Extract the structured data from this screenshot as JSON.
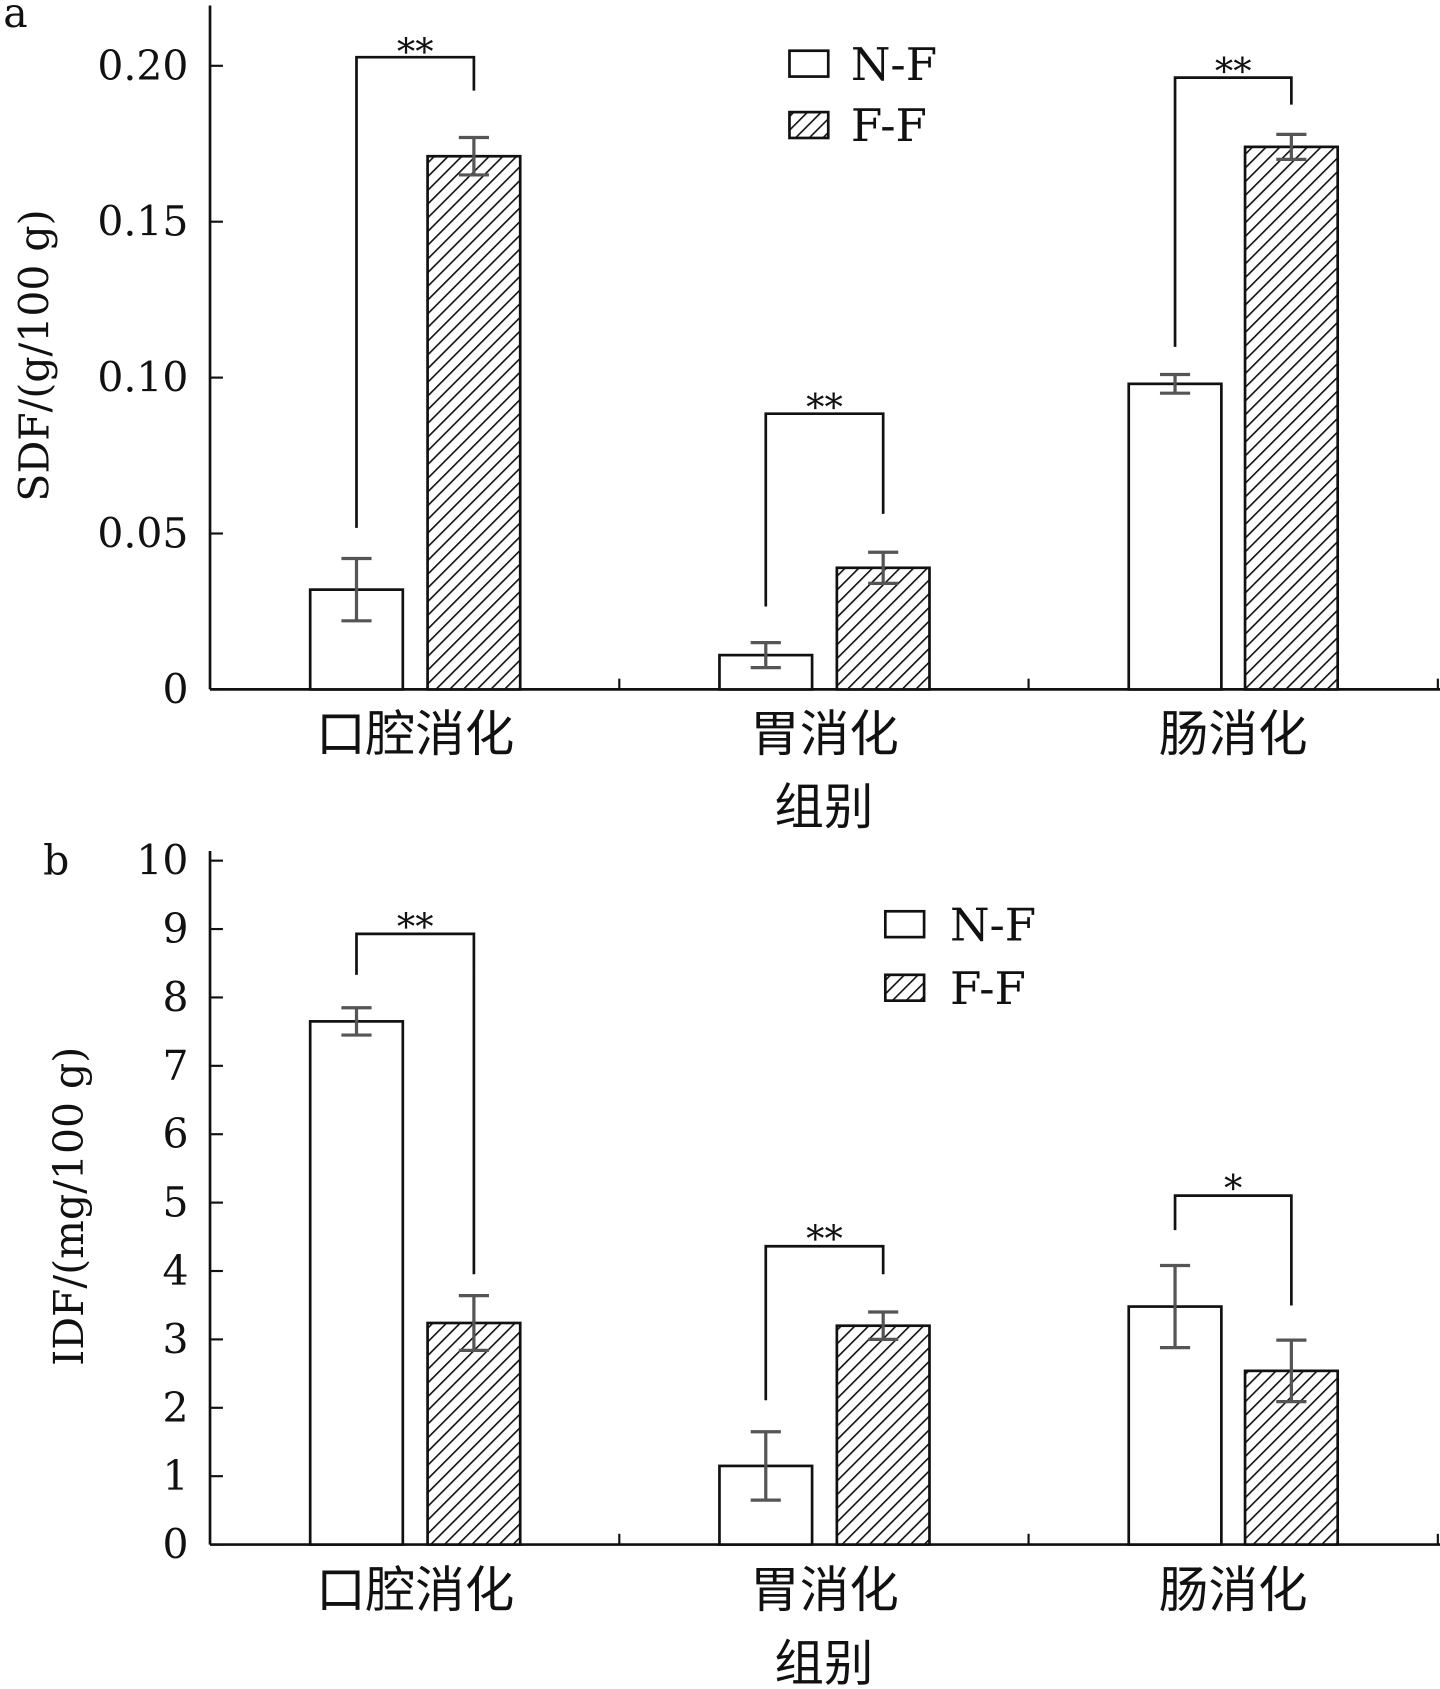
{
  "colors": {
    "axis": "#111111",
    "error_bar": "#555555",
    "bar_fill": "#ffffff",
    "hatch": "#111111"
  },
  "chart_data": [
    {
      "type": "bar",
      "panel_label": "a",
      "title": "",
      "xlabel": "组别",
      "ylabel": "SDF/(g/100 g)",
      "ylim": [
        0,
        0.2
      ],
      "yticks": [
        "0",
        "0.05",
        "0.10",
        "0.15",
        "0.20"
      ],
      "ytick_values": [
        0,
        0.05,
        0.1,
        0.15,
        0.2
      ],
      "categories": [
        "口腔消化",
        "胃消化",
        "肠消化"
      ],
      "legend_position": "top-center",
      "series": [
        {
          "name": "N-F",
          "pattern": "none",
          "values": [
            0.032,
            0.011,
            0.098
          ],
          "errors": [
            0.01,
            0.004,
            0.003
          ]
        },
        {
          "name": "F-F",
          "pattern": "hatched",
          "values": [
            0.171,
            0.039,
            0.174
          ],
          "errors": [
            0.006,
            0.005,
            0.004
          ]
        }
      ],
      "significance": [
        "**",
        "**",
        "**"
      ],
      "grid": false
    },
    {
      "type": "bar",
      "panel_label": "b",
      "title": "",
      "xlabel": "组别",
      "ylabel": "IDF/(mg/100 g)",
      "ylim": [
        0,
        10
      ],
      "yticks": [
        "0",
        "1",
        "2",
        "3",
        "4",
        "5",
        "6",
        "7",
        "8",
        "9",
        "10"
      ],
      "ytick_values": [
        0,
        1,
        2,
        3,
        4,
        5,
        6,
        7,
        8,
        9,
        10
      ],
      "categories": [
        "口腔消化",
        "胃消化",
        "肠消化"
      ],
      "legend_position": "top-center",
      "series": [
        {
          "name": "N-F",
          "pattern": "none",
          "values": [
            7.65,
            1.15,
            3.48
          ],
          "errors": [
            0.2,
            0.5,
            0.6
          ]
        },
        {
          "name": "F-F",
          "pattern": "hatched",
          "values": [
            3.24,
            3.2,
            2.54
          ],
          "errors": [
            0.4,
            0.2,
            0.45
          ]
        }
      ],
      "significance": [
        "**",
        "**",
        "*"
      ],
      "grid": false
    }
  ]
}
